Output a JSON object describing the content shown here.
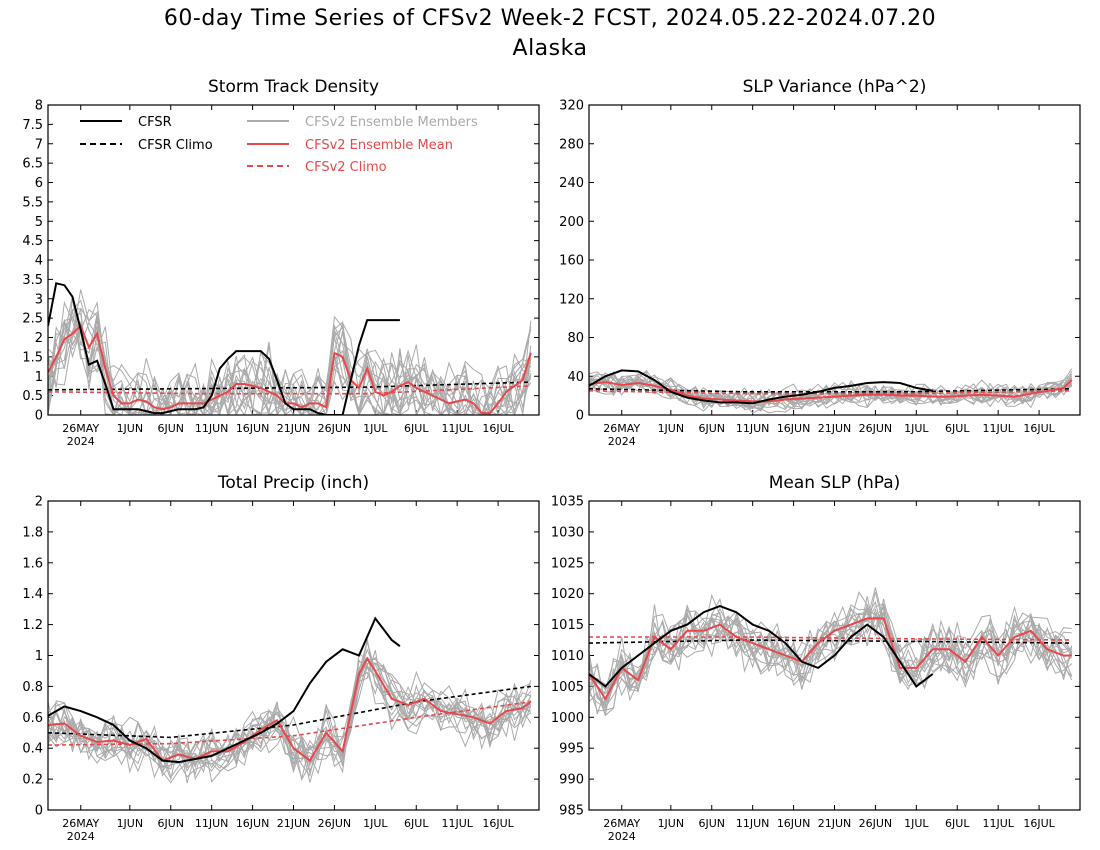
{
  "figure": {
    "title": "60-day Time Series of CFSv2 Week-2 FCST, 2024.05.22-2024.07.20",
    "region": "Alaska"
  },
  "legend": {
    "cfsr": "CFSR",
    "cfsr_climo": "CFSR Climo",
    "members": "CFSv2 Ensemble Members",
    "mean": "CFSv2 Ensemble Mean",
    "cfsv2_climo": "CFSv2 Climo"
  },
  "colors": {
    "cfsr": "#000000",
    "members": "#aaaaaa",
    "mean": "#e8474b",
    "cfsv2_climo": "#e8474b"
  },
  "x_axis": {
    "start_date": "2024-05-22",
    "days": 60,
    "tick_labels": [
      "26MAY",
      "1JUN",
      "6JUN",
      "11JUN",
      "16JUN",
      "21JUN",
      "26JUN",
      "1JUL",
      "6JUL",
      "11JUL",
      "16JUL"
    ],
    "year_label": "2024"
  },
  "chart_data": [
    {
      "type": "line",
      "title": "Storm Track Density",
      "ylim": [
        0,
        8
      ],
      "yticks": [
        "0",
        "0.5",
        "1",
        "1.5",
        "2",
        "2.5",
        "3",
        "3.5",
        "4",
        "4.5",
        "5",
        "5.5",
        "6",
        "6.5",
        "7",
        "7.5",
        "8"
      ],
      "has_legend": true,
      "series": [
        {
          "name": "CFSR",
          "style": "solid-black",
          "x": [
            "2024-05-22",
            "2024-05-23",
            "2024-05-24",
            "2024-05-25",
            "2024-05-26",
            "2024-05-27",
            "2024-05-28",
            "2024-05-29",
            "2024-05-30",
            "2024-05-31",
            "2024-06-01",
            "2024-06-02",
            "2024-06-03",
            "2024-06-04",
            "2024-06-05",
            "2024-06-06",
            "2024-06-07",
            "2024-06-08",
            "2024-06-09",
            "2024-06-10",
            "2024-06-11",
            "2024-06-12",
            "2024-06-13",
            "2024-06-14",
            "2024-06-15",
            "2024-06-16",
            "2024-06-17",
            "2024-06-18",
            "2024-06-19",
            "2024-06-20",
            "2024-06-21",
            "2024-06-22",
            "2024-06-23",
            "2024-06-24",
            "2024-06-25",
            "2024-06-26",
            "2024-06-27",
            "2024-06-28",
            "2024-06-29",
            "2024-06-30",
            "2024-07-01",
            "2024-07-02",
            "2024-07-03",
            "2024-07-04"
          ],
          "values": [
            2.3,
            3.4,
            3.35,
            3.05,
            2.2,
            1.3,
            1.4,
            0.8,
            0.15,
            0.15,
            0.15,
            0.15,
            0.1,
            0.05,
            0.05,
            0.1,
            0.15,
            0.15,
            0.15,
            0.2,
            0.5,
            1.2,
            1.45,
            1.65,
            1.65,
            1.65,
            1.65,
            1.45,
            0.9,
            0.3,
            0.15,
            0.15,
            0.15,
            0.05,
            0,
            0,
            0,
            0.9,
            1.8,
            2.45,
            2.45,
            2.45,
            2.45,
            2.45
          ]
        },
        {
          "name": "CFSR Climo",
          "style": "dashed-black",
          "x": [
            "2024-05-22",
            "2024-06-10",
            "2024-06-30",
            "2024-07-20"
          ],
          "values": [
            0.65,
            0.68,
            0.72,
            0.85
          ]
        },
        {
          "name": "CFSv2 Ensemble Mean",
          "style": "solid-red",
          "x": [
            "2024-05-22",
            "2024-05-23",
            "2024-05-24",
            "2024-05-25",
            "2024-05-26",
            "2024-05-27",
            "2024-05-28",
            "2024-05-29",
            "2024-05-30",
            "2024-05-31",
            "2024-06-01",
            "2024-06-02",
            "2024-06-03",
            "2024-06-04",
            "2024-06-05",
            "2024-06-06",
            "2024-06-07",
            "2024-06-08",
            "2024-06-09",
            "2024-06-10",
            "2024-06-11",
            "2024-06-12",
            "2024-06-13",
            "2024-06-14",
            "2024-06-15",
            "2024-06-16",
            "2024-06-17",
            "2024-06-18",
            "2024-06-19",
            "2024-06-20",
            "2024-06-21",
            "2024-06-22",
            "2024-06-23",
            "2024-06-24",
            "2024-06-25",
            "2024-06-26",
            "2024-06-27",
            "2024-06-28",
            "2024-06-29",
            "2024-06-30",
            "2024-07-01",
            "2024-07-02",
            "2024-07-03",
            "2024-07-04",
            "2024-07-05",
            "2024-07-06",
            "2024-07-07",
            "2024-07-08",
            "2024-07-09",
            "2024-07-10",
            "2024-07-11",
            "2024-07-12",
            "2024-07-13",
            "2024-07-14",
            "2024-07-15",
            "2024-07-16",
            "2024-07-17",
            "2024-07-18",
            "2024-07-19",
            "2024-07-20"
          ],
          "values": [
            1.1,
            1.5,
            1.95,
            2.1,
            2.3,
            1.75,
            2.1,
            1.2,
            0.5,
            0.3,
            0.3,
            0.4,
            0.35,
            0.2,
            0.15,
            0.2,
            0.3,
            0.3,
            0.3,
            0.3,
            0.4,
            0.5,
            0.6,
            0.8,
            0.8,
            0.75,
            0.7,
            0.6,
            0.5,
            0.3,
            0.3,
            0.2,
            0.3,
            0.3,
            0.2,
            1.6,
            1.5,
            0.9,
            0.7,
            1.2,
            0.6,
            0.5,
            0.6,
            0.75,
            0.85,
            0.7,
            0.6,
            0.5,
            0.4,
            0.3,
            0.35,
            0.4,
            0.3,
            0.05,
            0.05,
            0.3,
            0.6,
            0.75,
            0.9,
            1.6
          ]
        },
        {
          "name": "CFSv2 Climo",
          "style": "dashed-red",
          "x": [
            "2024-05-22",
            "2024-06-10",
            "2024-06-30",
            "2024-07-20"
          ],
          "values": [
            0.6,
            0.55,
            0.55,
            0.75
          ]
        }
      ]
    },
    {
      "type": "line",
      "title": "SLP Variance (hPa^2)",
      "ylim": [
        0,
        320
      ],
      "yticks": [
        "0",
        "40",
        "80",
        "120",
        "160",
        "200",
        "240",
        "280",
        "320"
      ],
      "has_legend": false,
      "series": [
        {
          "name": "CFSR",
          "style": "solid-black",
          "x": [
            "2024-05-22",
            "2024-05-24",
            "2024-05-26",
            "2024-05-28",
            "2024-05-30",
            "2024-06-01",
            "2024-06-03",
            "2024-06-05",
            "2024-06-07",
            "2024-06-09",
            "2024-06-11",
            "2024-06-13",
            "2024-06-15",
            "2024-06-17",
            "2024-06-19",
            "2024-06-21",
            "2024-06-23",
            "2024-06-25",
            "2024-06-27",
            "2024-06-29",
            "2024-07-01",
            "2024-07-03"
          ],
          "values": [
            30,
            40,
            46,
            45,
            36,
            24,
            18,
            15,
            13,
            13,
            12,
            16,
            19,
            21,
            24,
            28,
            30,
            33,
            34,
            33,
            28,
            25
          ]
        },
        {
          "name": "CFSR Climo",
          "style": "dashed-black",
          "x": [
            "2024-05-22",
            "2024-06-10",
            "2024-06-30",
            "2024-07-20"
          ],
          "values": [
            27,
            24,
            24,
            27
          ]
        },
        {
          "name": "CFSv2 Ensemble Mean",
          "style": "solid-red",
          "x": [
            "2024-05-22",
            "2024-05-24",
            "2024-05-26",
            "2024-05-28",
            "2024-05-30",
            "2024-06-01",
            "2024-06-03",
            "2024-06-05",
            "2024-06-07",
            "2024-06-09",
            "2024-06-11",
            "2024-06-13",
            "2024-06-15",
            "2024-06-17",
            "2024-06-19",
            "2024-06-21",
            "2024-06-23",
            "2024-06-25",
            "2024-06-27",
            "2024-06-29",
            "2024-07-01",
            "2024-07-03",
            "2024-07-05",
            "2024-07-07",
            "2024-07-09",
            "2024-07-11",
            "2024-07-13",
            "2024-07-15",
            "2024-07-17",
            "2024-07-19",
            "2024-07-20"
          ],
          "values": [
            32,
            34,
            31,
            33,
            30,
            26,
            20,
            17,
            16,
            15,
            14,
            14,
            16,
            17,
            18,
            19,
            20,
            21,
            21,
            20,
            20,
            19,
            19,
            20,
            21,
            20,
            19,
            22,
            25,
            28,
            36
          ]
        },
        {
          "name": "CFSv2 Climo",
          "style": "dashed-red",
          "x": [
            "2024-05-22",
            "2024-06-10",
            "2024-06-30",
            "2024-07-20"
          ],
          "values": [
            25,
            22,
            22,
            25
          ]
        }
      ]
    },
    {
      "type": "line",
      "title": "Total Precip (inch)",
      "ylim": [
        0,
        2
      ],
      "yticks": [
        "0",
        "0.2",
        "0.4",
        "0.6",
        "0.8",
        "1",
        "1.2",
        "1.4",
        "1.6",
        "1.8",
        "2"
      ],
      "has_legend": false,
      "series": [
        {
          "name": "CFSR",
          "style": "solid-black",
          "x": [
            "2024-05-22",
            "2024-05-24",
            "2024-05-26",
            "2024-05-28",
            "2024-05-30",
            "2024-06-01",
            "2024-06-03",
            "2024-06-05",
            "2024-06-07",
            "2024-06-09",
            "2024-06-11",
            "2024-06-13",
            "2024-06-15",
            "2024-06-17",
            "2024-06-19",
            "2024-06-21",
            "2024-06-23",
            "2024-06-25",
            "2024-06-27",
            "2024-06-29",
            "2024-07-01",
            "2024-07-03",
            "2024-07-04"
          ],
          "values": [
            0.61,
            0.67,
            0.64,
            0.6,
            0.55,
            0.45,
            0.4,
            0.32,
            0.31,
            0.33,
            0.35,
            0.4,
            0.45,
            0.5,
            0.56,
            0.64,
            0.82,
            0.96,
            1.04,
            1.0,
            1.24,
            1.1,
            1.06
          ]
        },
        {
          "name": "CFSR Climo",
          "style": "dashed-black",
          "x": [
            "2024-05-22",
            "2024-06-06",
            "2024-06-21",
            "2024-07-06",
            "2024-07-20"
          ],
          "values": [
            0.5,
            0.47,
            0.55,
            0.7,
            0.8
          ]
        },
        {
          "name": "CFSv2 Ensemble Mean",
          "style": "solid-red",
          "x": [
            "2024-05-22",
            "2024-05-24",
            "2024-05-26",
            "2024-05-28",
            "2024-05-30",
            "2024-06-01",
            "2024-06-03",
            "2024-06-05",
            "2024-06-07",
            "2024-06-09",
            "2024-06-11",
            "2024-06-13",
            "2024-06-15",
            "2024-06-17",
            "2024-06-19",
            "2024-06-21",
            "2024-06-23",
            "2024-06-25",
            "2024-06-27",
            "2024-06-29",
            "2024-06-30",
            "2024-07-01",
            "2024-07-03",
            "2024-07-05",
            "2024-07-07",
            "2024-07-09",
            "2024-07-11",
            "2024-07-13",
            "2024-07-15",
            "2024-07-17",
            "2024-07-19",
            "2024-07-20"
          ],
          "values": [
            0.55,
            0.56,
            0.48,
            0.44,
            0.45,
            0.42,
            0.46,
            0.32,
            0.36,
            0.33,
            0.38,
            0.38,
            0.44,
            0.52,
            0.58,
            0.4,
            0.32,
            0.5,
            0.38,
            0.88,
            0.98,
            0.9,
            0.72,
            0.68,
            0.72,
            0.64,
            0.62,
            0.6,
            0.56,
            0.64,
            0.66,
            0.7
          ]
        },
        {
          "name": "CFSv2 Climo",
          "style": "dashed-red",
          "x": [
            "2024-05-22",
            "2024-06-06",
            "2024-06-21",
            "2024-07-06",
            "2024-07-20"
          ],
          "values": [
            0.42,
            0.43,
            0.48,
            0.6,
            0.7
          ]
        }
      ]
    },
    {
      "type": "line",
      "title": "Mean SLP (hPa)",
      "ylim": [
        985,
        1035
      ],
      "yticks": [
        "985",
        "990",
        "995",
        "1000",
        "1005",
        "1010",
        "1015",
        "1020",
        "1025",
        "1030",
        "1035"
      ],
      "has_legend": false,
      "series": [
        {
          "name": "CFSR",
          "style": "solid-black",
          "x": [
            "2024-05-22",
            "2024-05-24",
            "2024-05-26",
            "2024-05-28",
            "2024-05-30",
            "2024-06-01",
            "2024-06-03",
            "2024-06-05",
            "2024-06-07",
            "2024-06-09",
            "2024-06-11",
            "2024-06-13",
            "2024-06-15",
            "2024-06-17",
            "2024-06-19",
            "2024-06-21",
            "2024-06-23",
            "2024-06-25",
            "2024-06-27",
            "2024-06-29",
            "2024-07-01",
            "2024-07-03"
          ],
          "values": [
            1007,
            1005,
            1008,
            1010,
            1012,
            1014,
            1015,
            1017,
            1018,
            1017,
            1015,
            1014,
            1012,
            1009,
            1008,
            1010,
            1013,
            1015,
            1013,
            1009,
            1005,
            1007
          ]
        },
        {
          "name": "CFSR Climo",
          "style": "dashed-black",
          "x": [
            "2024-05-22",
            "2024-06-10",
            "2024-06-30",
            "2024-07-20"
          ],
          "values": [
            1012,
            1012.5,
            1012.3,
            1012
          ]
        },
        {
          "name": "CFSv2 Ensemble Mean",
          "style": "solid-red",
          "x": [
            "2024-05-22",
            "2024-05-24",
            "2024-05-26",
            "2024-05-28",
            "2024-05-30",
            "2024-06-01",
            "2024-06-03",
            "2024-06-05",
            "2024-06-07",
            "2024-06-09",
            "2024-06-11",
            "2024-06-13",
            "2024-06-15",
            "2024-06-17",
            "2024-06-19",
            "2024-06-21",
            "2024-06-23",
            "2024-06-25",
            "2024-06-27",
            "2024-06-29",
            "2024-07-01",
            "2024-07-03",
            "2024-07-05",
            "2024-07-07",
            "2024-07-09",
            "2024-07-11",
            "2024-07-13",
            "2024-07-15",
            "2024-07-17",
            "2024-07-19",
            "2024-07-20"
          ],
          "values": [
            1007,
            1003,
            1008,
            1006,
            1013,
            1011,
            1014,
            1014,
            1015,
            1013,
            1012,
            1011,
            1010,
            1009,
            1012,
            1014,
            1015,
            1016,
            1016,
            1008,
            1008,
            1011,
            1011,
            1009,
            1013,
            1010,
            1013,
            1014,
            1011,
            1010,
            1010
          ]
        },
        {
          "name": "CFSv2 Climo",
          "style": "dashed-red",
          "x": [
            "2024-05-22",
            "2024-06-10",
            "2024-06-30",
            "2024-07-20"
          ],
          "values": [
            1013,
            1013,
            1012.7,
            1012.5
          ]
        }
      ]
    }
  ]
}
